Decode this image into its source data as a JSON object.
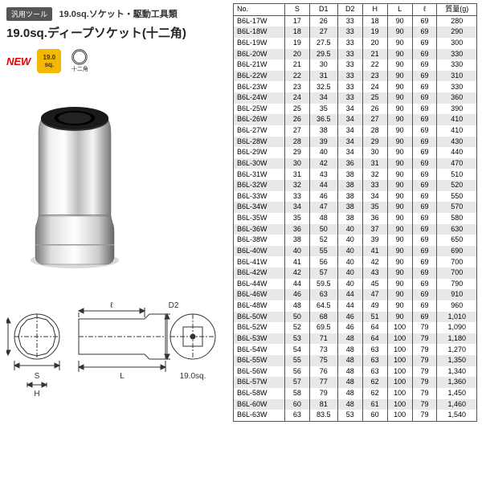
{
  "header": {
    "tag": "汎用ツール",
    "category": "19.0sq.ソケット・駆動工具類",
    "title": "19.0sq.ディープソケット(十二角)"
  },
  "badges": {
    "new": "NEW",
    "sq_top": "19.0",
    "sq_bot": "sq.",
    "dodeca_label": "十二角"
  },
  "diagram": {
    "labels": {
      "s": "S",
      "d1": "D1",
      "d2": "D2",
      "h": "H",
      "l": "L",
      "ell": "ℓ",
      "drive": "19.0sq."
    }
  },
  "table": {
    "headers": [
      "No.",
      "S",
      "D1",
      "D2",
      "H",
      "L",
      "ℓ",
      "質量(g)"
    ],
    "rows": [
      [
        "B6L-17W",
        "17",
        "26",
        "33",
        "18",
        "90",
        "69",
        "280"
      ],
      [
        "B6L-18W",
        "18",
        "27",
        "33",
        "19",
        "90",
        "69",
        "290"
      ],
      [
        "B6L-19W",
        "19",
        "27.5",
        "33",
        "20",
        "90",
        "69",
        "300"
      ],
      [
        "B6L-20W",
        "20",
        "29.5",
        "33",
        "21",
        "90",
        "69",
        "330"
      ],
      [
        "B6L-21W",
        "21",
        "30",
        "33",
        "22",
        "90",
        "69",
        "330"
      ],
      [
        "B6L-22W",
        "22",
        "31",
        "33",
        "23",
        "90",
        "69",
        "310"
      ],
      [
        "B6L-23W",
        "23",
        "32.5",
        "33",
        "24",
        "90",
        "69",
        "330"
      ],
      [
        "B6L-24W",
        "24",
        "34",
        "33",
        "25",
        "90",
        "69",
        "360"
      ],
      [
        "B6L-25W",
        "25",
        "35",
        "34",
        "26",
        "90",
        "69",
        "390"
      ],
      [
        "B6L-26W",
        "26",
        "36.5",
        "34",
        "27",
        "90",
        "69",
        "410"
      ],
      [
        "B6L-27W",
        "27",
        "38",
        "34",
        "28",
        "90",
        "69",
        "410"
      ],
      [
        "B6L-28W",
        "28",
        "39",
        "34",
        "29",
        "90",
        "69",
        "430"
      ],
      [
        "B6L-29W",
        "29",
        "40",
        "34",
        "30",
        "90",
        "69",
        "440"
      ],
      [
        "B6L-30W",
        "30",
        "42",
        "36",
        "31",
        "90",
        "69",
        "470"
      ],
      [
        "B6L-31W",
        "31",
        "43",
        "38",
        "32",
        "90",
        "69",
        "510"
      ],
      [
        "B6L-32W",
        "32",
        "44",
        "38",
        "33",
        "90",
        "69",
        "520"
      ],
      [
        "B6L-33W",
        "33",
        "46",
        "38",
        "34",
        "90",
        "69",
        "550"
      ],
      [
        "B6L-34W",
        "34",
        "47",
        "38",
        "35",
        "90",
        "69",
        "570"
      ],
      [
        "B6L-35W",
        "35",
        "48",
        "38",
        "36",
        "90",
        "69",
        "580"
      ],
      [
        "B6L-36W",
        "36",
        "50",
        "40",
        "37",
        "90",
        "69",
        "630"
      ],
      [
        "B6L-38W",
        "38",
        "52",
        "40",
        "39",
        "90",
        "69",
        "650"
      ],
      [
        "B6L-40W",
        "40",
        "55",
        "40",
        "41",
        "90",
        "69",
        "690"
      ],
      [
        "B6L-41W",
        "41",
        "56",
        "40",
        "42",
        "90",
        "69",
        "700"
      ],
      [
        "B6L-42W",
        "42",
        "57",
        "40",
        "43",
        "90",
        "69",
        "700"
      ],
      [
        "B6L-44W",
        "44",
        "59.5",
        "40",
        "45",
        "90",
        "69",
        "790"
      ],
      [
        "B6L-46W",
        "46",
        "63",
        "44",
        "47",
        "90",
        "69",
        "910"
      ],
      [
        "B6L-48W",
        "48",
        "64.5",
        "44",
        "49",
        "90",
        "69",
        "960"
      ],
      [
        "B6L-50W",
        "50",
        "68",
        "46",
        "51",
        "90",
        "69",
        "1,010"
      ],
      [
        "B6L-52W",
        "52",
        "69.5",
        "46",
        "64",
        "100",
        "79",
        "1,090"
      ],
      [
        "B6L-53W",
        "53",
        "71",
        "48",
        "64",
        "100",
        "79",
        "1,180"
      ],
      [
        "B6L-54W",
        "54",
        "73",
        "48",
        "63",
        "100",
        "79",
        "1,270"
      ],
      [
        "B6L-55W",
        "55",
        "75",
        "48",
        "63",
        "100",
        "79",
        "1,350"
      ],
      [
        "B6L-56W",
        "56",
        "76",
        "48",
        "63",
        "100",
        "79",
        "1,340"
      ],
      [
        "B6L-57W",
        "57",
        "77",
        "48",
        "62",
        "100",
        "79",
        "1,360"
      ],
      [
        "B6L-58W",
        "58",
        "79",
        "48",
        "62",
        "100",
        "79",
        "1,450"
      ],
      [
        "B6L-60W",
        "60",
        "81",
        "48",
        "61",
        "100",
        "79",
        "1,460"
      ],
      [
        "B6L-63W",
        "63",
        "83.5",
        "53",
        "60",
        "100",
        "79",
        "1,540"
      ]
    ],
    "stripe_indices": [
      1,
      3,
      5,
      7,
      9,
      11,
      13,
      15,
      17,
      19,
      21,
      23,
      25,
      27,
      29,
      31,
      33,
      35
    ],
    "col_widths": [
      "62px",
      "30px",
      "34px",
      "30px",
      "30px",
      "30px",
      "30px",
      "48px"
    ]
  },
  "colors": {
    "tag_bg": "#555555",
    "tag_fg": "#ffffff",
    "text": "#222222",
    "new": "#ee0000",
    "sq_bg": "#f5b800",
    "stripe": "#e8e8e8",
    "border": "#555555",
    "bg": "#ffffff"
  }
}
